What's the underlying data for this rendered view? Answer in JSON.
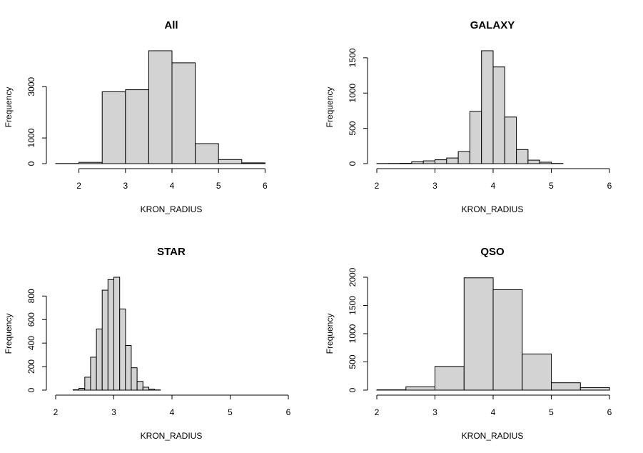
{
  "chart_data": [
    {
      "type": "bar",
      "title": "All",
      "xlabel": "KRON_RADIUS",
      "ylabel": "Frequency",
      "bin_edges": [
        1.5,
        2.0,
        2.5,
        3.0,
        3.5,
        4.0,
        4.5,
        5.0,
        5.5,
        6.0
      ],
      "values": [
        5,
        50,
        2800,
        2880,
        4400,
        3930,
        780,
        160,
        30
      ],
      "xlim": [
        1.5,
        6.5
      ],
      "ylim": [
        0,
        4400
      ],
      "xticks": [
        2,
        3,
        4,
        5,
        6
      ],
      "yticks": [
        0,
        1000,
        3000
      ]
    },
    {
      "type": "bar",
      "title": "GALAXY",
      "xlabel": "KRON_RADIUS",
      "ylabel": "Frequency",
      "bin_edges": [
        2.0,
        2.2,
        2.4,
        2.6,
        2.8,
        3.0,
        3.2,
        3.4,
        3.6,
        3.8,
        4.0,
        4.2,
        4.4,
        4.6,
        4.8,
        5.0,
        5.2
      ],
      "values": [
        2,
        3,
        5,
        25,
        40,
        55,
        80,
        170,
        740,
        1600,
        1370,
        660,
        200,
        50,
        20,
        3
      ],
      "xlim": [
        2,
        6
      ],
      "ylim": [
        0,
        1600
      ],
      "xticks": [
        2,
        3,
        4,
        5,
        6
      ],
      "yticks": [
        0,
        500,
        1000,
        1500
      ]
    },
    {
      "type": "bar",
      "title": "STAR",
      "xlabel": "KRON_RADIUS",
      "ylabel": "Frequency",
      "bin_edges": [
        2.3,
        2.4,
        2.5,
        2.6,
        2.7,
        2.8,
        2.9,
        3.0,
        3.1,
        3.2,
        3.3,
        3.4,
        3.5,
        3.6,
        3.7,
        3.8
      ],
      "values": [
        3,
        15,
        110,
        280,
        520,
        850,
        940,
        960,
        690,
        380,
        190,
        75,
        25,
        8,
        2
      ],
      "xlim": [
        2,
        6
      ],
      "ylim": [
        0,
        960
      ],
      "xticks": [
        2,
        3,
        4,
        5,
        6
      ],
      "yticks": [
        0,
        200,
        400,
        600,
        800
      ]
    },
    {
      "type": "bar",
      "title": "QSO",
      "xlabel": "KRON_RADIUS",
      "ylabel": "Frequency",
      "bin_edges": [
        2.0,
        2.5,
        3.0,
        3.5,
        4.0,
        4.5,
        5.0,
        5.5,
        6.0
      ],
      "values": [
        5,
        60,
        420,
        1990,
        1780,
        640,
        130,
        45
      ],
      "xlim": [
        2,
        6
      ],
      "ylim": [
        0,
        2000
      ],
      "xticks": [
        2,
        3,
        4,
        5,
        6
      ],
      "yticks": [
        0,
        500,
        1000,
        1500,
        2000
      ]
    }
  ]
}
